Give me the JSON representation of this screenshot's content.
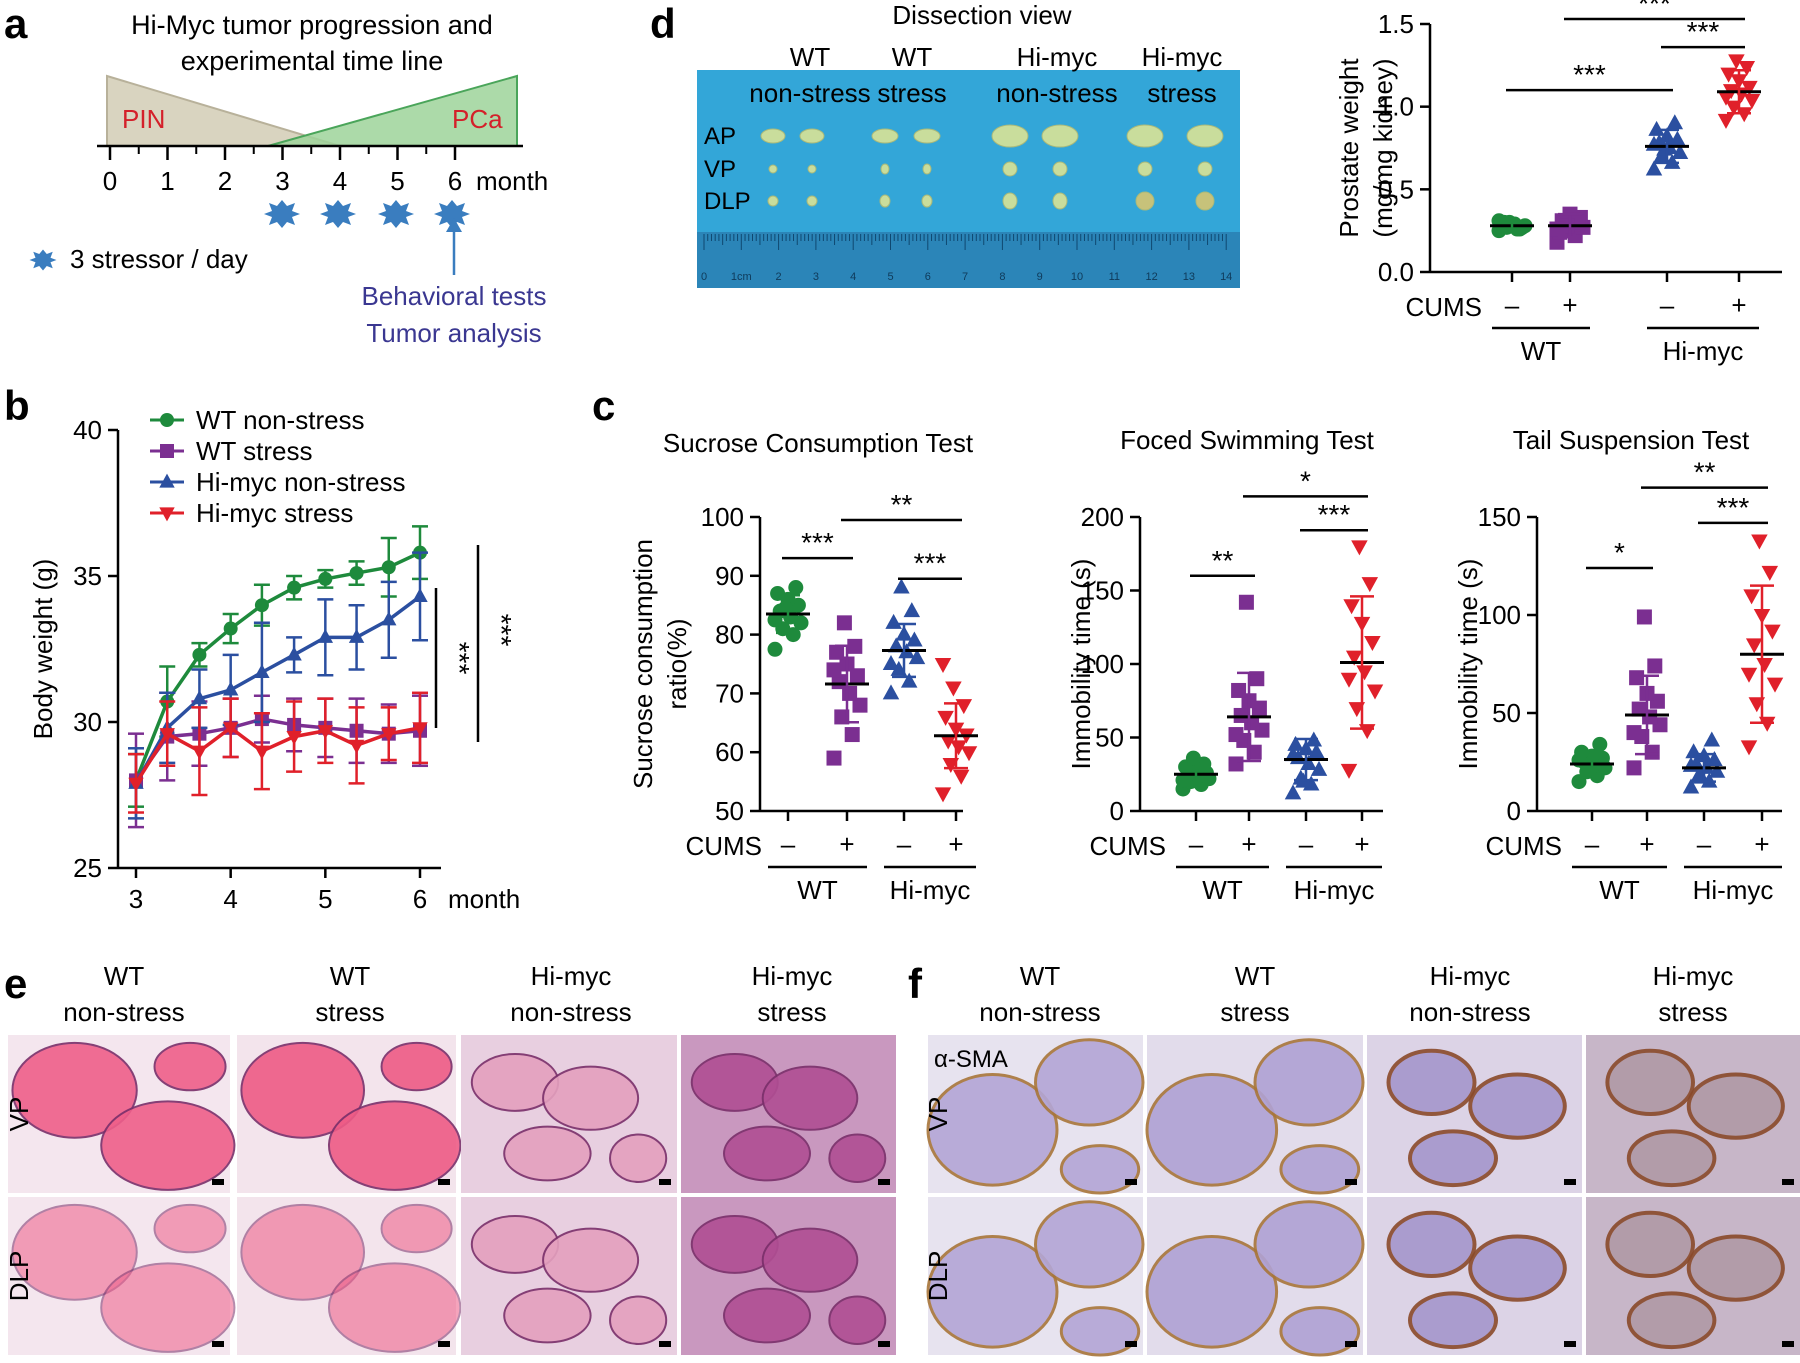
{
  "colors": {
    "wt_nonstress": "#1e8a3c",
    "wt_stress": "#7b2f91",
    "himyc_nonstress": "#2b4fa0",
    "himyc_stress": "#e0202a",
    "pin_label": "#d4202a",
    "behavior_text": "#3a3791",
    "stressor": "#3a7dbf",
    "dish_blue": "#33a6d8"
  },
  "panel_a": {
    "letter": "a",
    "title_line1": "Hi-Myc tumor progression and",
    "title_line2": "experimental time line",
    "pin": "PIN",
    "pca": "PCa",
    "ticks": [
      "0",
      "1",
      "2",
      "3",
      "4",
      "5",
      "6"
    ],
    "unit": "month",
    "stressor_legend": "3 stressor / day",
    "behavior_line1": "Behavioral tests",
    "behavior_line2": "Tumor analysis"
  },
  "panel_d": {
    "letter": "d",
    "title": "Dissection view",
    "columns": [
      {
        "l1": "WT",
        "l2": "non-stress"
      },
      {
        "l1": "WT",
        "l2": "stress"
      },
      {
        "l1": "Hi-myc",
        "l2": "non-stress"
      },
      {
        "l1": "Hi-myc",
        "l2": "stress"
      }
    ],
    "rows": [
      "AP",
      "VP",
      "DLP"
    ],
    "ruler": [
      "0",
      "1cm",
      "2",
      "3",
      "4",
      "5",
      "6",
      "7",
      "8",
      "9",
      "10",
      "11",
      "12",
      "13",
      "14"
    ]
  },
  "histology": {
    "e_letter": "e",
    "f_letter": "f",
    "groups": [
      {
        "l1": "WT",
        "l2": "non-stress"
      },
      {
        "l1": "WT",
        "l2": "stress"
      },
      {
        "l1": "Hi-myc",
        "l2": "non-stress"
      },
      {
        "l1": "Hi-myc",
        "l2": "stress"
      }
    ],
    "rows": [
      "VP",
      "DLP"
    ],
    "stain": "α-SMA"
  },
  "chart_data": [
    {
      "panel": "b",
      "type": "line",
      "ylabel": "Body weight (g)",
      "x_unit": "month",
      "x": [
        3,
        3.33,
        3.67,
        4,
        4.33,
        4.67,
        5,
        5.33,
        5.67,
        6
      ],
      "xticks": [
        3,
        4,
        5,
        6
      ],
      "ylim": [
        25,
        40
      ],
      "yticks": [
        25,
        30,
        35,
        40
      ],
      "legend_position": "top-left",
      "series": [
        {
          "name": "WT non-stress",
          "color_key": "wt_nonstress",
          "marker": "circle",
          "values": [
            28.0,
            30.7,
            32.3,
            33.2,
            34.0,
            34.6,
            34.9,
            35.1,
            35.3,
            35.8
          ],
          "err": [
            0.9,
            1.2,
            0.4,
            0.5,
            0.7,
            0.4,
            0.3,
            0.4,
            1.0,
            0.9
          ]
        },
        {
          "name": "WT stress",
          "color_key": "wt_stress",
          "marker": "square",
          "values": [
            28.0,
            29.5,
            29.6,
            29.8,
            30.1,
            29.9,
            29.8,
            29.7,
            29.6,
            29.7
          ],
          "err": [
            1.6,
            1.5,
            1.1,
            1.0,
            0.8,
            0.9,
            1.0,
            1.1,
            1.0,
            1.2
          ]
        },
        {
          "name": "Hi-myc non-stress",
          "color_key": "himyc_nonstress",
          "marker": "triangle-up",
          "values": [
            27.9,
            29.8,
            30.8,
            31.1,
            31.7,
            32.3,
            32.9,
            32.9,
            33.5,
            34.3
          ],
          "err": [
            1.2,
            1.2,
            1.0,
            1.2,
            1.7,
            0.6,
            1.3,
            1.1,
            1.3,
            1.5
          ]
        },
        {
          "name": "Hi-myc stress",
          "color_key": "himyc_stress",
          "marker": "triangle-down",
          "values": [
            27.9,
            29.6,
            29.0,
            29.8,
            29.0,
            29.5,
            29.7,
            29.2,
            29.6,
            29.8
          ],
          "err": [
            1.0,
            1.1,
            1.5,
            1.0,
            1.3,
            1.2,
            1.1,
            1.3,
            0.9,
            1.2
          ]
        }
      ],
      "significance": [
        "***",
        "***"
      ]
    },
    {
      "panel": "d",
      "type": "scatter",
      "ylabel_line1": "Prostate weight",
      "ylabel_line2": "(mg/mg kidney)",
      "ylim": [
        0.0,
        1.5
      ],
      "yticks": [
        "0.0",
        "0.5",
        "1.0",
        "1.5"
      ],
      "cums_label": "CUMS",
      "cums_values": [
        "–",
        "+",
        "–",
        "+"
      ],
      "groups": [
        "WT",
        "Hi-myc"
      ],
      "series": [
        {
          "name": "WT non-stress",
          "color_key": "wt_nonstress",
          "marker": "circle",
          "mean": 0.28,
          "sd": 0.03,
          "values": [
            0.25,
            0.26,
            0.27,
            0.28,
            0.29,
            0.3,
            0.27,
            0.28,
            0.29,
            0.26,
            0.3,
            0.31
          ]
        },
        {
          "name": "WT stress",
          "color_key": "wt_stress",
          "marker": "square",
          "mean": 0.28,
          "sd": 0.07,
          "values": [
            0.18,
            0.22,
            0.25,
            0.27,
            0.29,
            0.31,
            0.33,
            0.35,
            0.24,
            0.3,
            0.28,
            0.26
          ]
        },
        {
          "name": "Hi-myc non-stress",
          "color_key": "himyc_nonstress",
          "marker": "triangle-up",
          "mean": 0.76,
          "sd": 0.1,
          "values": [
            0.62,
            0.66,
            0.7,
            0.72,
            0.75,
            0.78,
            0.8,
            0.82,
            0.86,
            0.9,
            0.74,
            0.77
          ]
        },
        {
          "name": "Hi-myc stress",
          "color_key": "himyc_stress",
          "marker": "triangle-down",
          "mean": 1.09,
          "sd": 0.13,
          "values": [
            0.92,
            0.96,
            1.0,
            1.04,
            1.08,
            1.1,
            1.12,
            1.16,
            1.2,
            1.24,
            1.28,
            1.06
          ]
        }
      ],
      "brackets": [
        {
          "from": 0,
          "to": 2,
          "y": 1.1,
          "label": "***"
        },
        {
          "from": 2,
          "to": 3,
          "y": 1.36,
          "label": "***"
        },
        {
          "from": 1,
          "to": 3,
          "y": 1.53,
          "label": "***"
        }
      ]
    },
    {
      "panel": "c",
      "type": "scatter",
      "title": "Sucrose Consumption Test",
      "ylabel_line1": "Sucrose consumption",
      "ylabel_line2": "ratio(%)",
      "ylim": [
        50,
        100
      ],
      "yticks": [
        "50",
        "60",
        "70",
        "80",
        "90",
        "100"
      ],
      "cums_label": "CUMS",
      "cums_values": [
        "–",
        "+",
        "–",
        "+"
      ],
      "groups": [
        "WT",
        "Hi-myc"
      ],
      "series": [
        {
          "name": "WT non-stress",
          "color_key": "wt_nonstress",
          "marker": "circle",
          "mean": 83.5,
          "sd": 3.2,
          "values": [
            77.5,
            80,
            81,
            82,
            83,
            84,
            85,
            86,
            87,
            88,
            84.5,
            82.5
          ]
        },
        {
          "name": "WT stress",
          "color_key": "wt_stress",
          "marker": "square",
          "mean": 71.6,
          "sd": 6.5,
          "values": [
            59,
            63,
            66,
            68,
            70,
            72,
            73,
            75,
            77,
            78,
            82,
            74
          ]
        },
        {
          "name": "Hi-myc non-stress",
          "color_key": "himyc_nonstress",
          "marker": "triangle-up",
          "mean": 77.3,
          "sd": 4.5,
          "values": [
            70,
            72,
            74,
            76,
            77,
            78,
            79,
            80,
            82,
            84,
            88,
            75
          ]
        },
        {
          "name": "Hi-myc stress",
          "color_key": "himyc_stress",
          "marker": "triangle-down",
          "mean": 62.8,
          "sd": 5.5,
          "values": [
            53,
            56,
            58,
            60,
            61,
            62,
            63,
            64,
            66,
            68,
            71,
            75
          ]
        }
      ],
      "brackets": [
        {
          "from": 0,
          "to": 1,
          "y": 93,
          "label": "***"
        },
        {
          "from": 2,
          "to": 3,
          "y": 89.5,
          "label": "***"
        },
        {
          "from": 1,
          "to": 3,
          "y": 99.5,
          "label": "**"
        }
      ]
    },
    {
      "panel": "c",
      "type": "scatter",
      "title": "Foced Swimming Test",
      "ylabel_line1": "Immobility time (s)",
      "ylabel_line2": "",
      "ylim": [
        0,
        200
      ],
      "yticks": [
        "0",
        "50",
        "100",
        "150",
        "200"
      ],
      "cums_label": "CUMS",
      "cums_values": [
        "–",
        "+",
        "–",
        "+"
      ],
      "groups": [
        "WT",
        "Hi-myc"
      ],
      "series": [
        {
          "name": "WT non-stress",
          "color_key": "wt_nonstress",
          "marker": "circle",
          "mean": 25,
          "sd": 7,
          "values": [
            15,
            18,
            20,
            22,
            24,
            25,
            26,
            28,
            30,
            32,
            36,
            21
          ]
        },
        {
          "name": "WT stress",
          "color_key": "wt_stress",
          "marker": "square",
          "mean": 64,
          "sd": 30,
          "values": [
            32,
            40,
            48,
            55,
            60,
            65,
            70,
            75,
            82,
            90,
            142,
            52
          ]
        },
        {
          "name": "Hi-myc non-stress",
          "color_key": "himyc_nonstress",
          "marker": "triangle-up",
          "mean": 35,
          "sd": 14,
          "values": [
            12,
            18,
            22,
            28,
            32,
            36,
            40,
            42,
            45,
            48,
            20,
            38
          ]
        },
        {
          "name": "Hi-myc stress",
          "color_key": "himyc_stress",
          "marker": "triangle-down",
          "mean": 101,
          "sd": 45,
          "values": [
            28,
            55,
            70,
            82,
            95,
            105,
            115,
            128,
            140,
            155,
            180,
            90
          ]
        }
      ],
      "brackets": [
        {
          "from": 0,
          "to": 1,
          "y": 160,
          "label": "**"
        },
        {
          "from": 2,
          "to": 3,
          "y": 191,
          "label": "***"
        },
        {
          "from": 1,
          "to": 3,
          "y": 214,
          "label": "*"
        }
      ]
    },
    {
      "panel": "c",
      "type": "scatter",
      "title": "Tail Suspension Test",
      "ylabel_line1": "Immobility time (s)",
      "ylabel_line2": "",
      "ylim": [
        0,
        150
      ],
      "yticks": [
        "0",
        "50",
        "100",
        "150"
      ],
      "cums_label": "CUMS",
      "cums_values": [
        "–",
        "+",
        "–",
        "+"
      ],
      "groups": [
        "WT",
        "Hi-myc"
      ],
      "series": [
        {
          "name": "WT non-stress",
          "color_key": "wt_nonstress",
          "marker": "circle",
          "mean": 24,
          "sd": 6,
          "values": [
            15,
            18,
            20,
            22,
            24,
            25,
            27,
            28,
            30,
            34,
            21,
            26
          ]
        },
        {
          "name": "WT stress",
          "color_key": "wt_stress",
          "marker": "square",
          "mean": 49,
          "sd": 20,
          "values": [
            22,
            30,
            38,
            44,
            48,
            52,
            56,
            60,
            68,
            74,
            99,
            40
          ]
        },
        {
          "name": "Hi-myc non-stress",
          "color_key": "himyc_nonstress",
          "marker": "triangle-up",
          "mean": 22,
          "sd": 7,
          "values": [
            12,
            15,
            18,
            20,
            22,
            24,
            26,
            28,
            30,
            36,
            17,
            23
          ]
        },
        {
          "name": "Hi-myc stress",
          "color_key": "himyc_stress",
          "marker": "triangle-down",
          "mean": 80,
          "sd": 35,
          "values": [
            33,
            45,
            55,
            65,
            75,
            85,
            92,
            100,
            110,
            122,
            138,
            70
          ]
        }
      ],
      "brackets": [
        {
          "from": 0,
          "to": 1,
          "y": 124,
          "label": "*"
        },
        {
          "from": 2,
          "to": 3,
          "y": 147,
          "label": "***"
        },
        {
          "from": 1,
          "to": 3,
          "y": 165,
          "label": "**"
        }
      ]
    }
  ]
}
